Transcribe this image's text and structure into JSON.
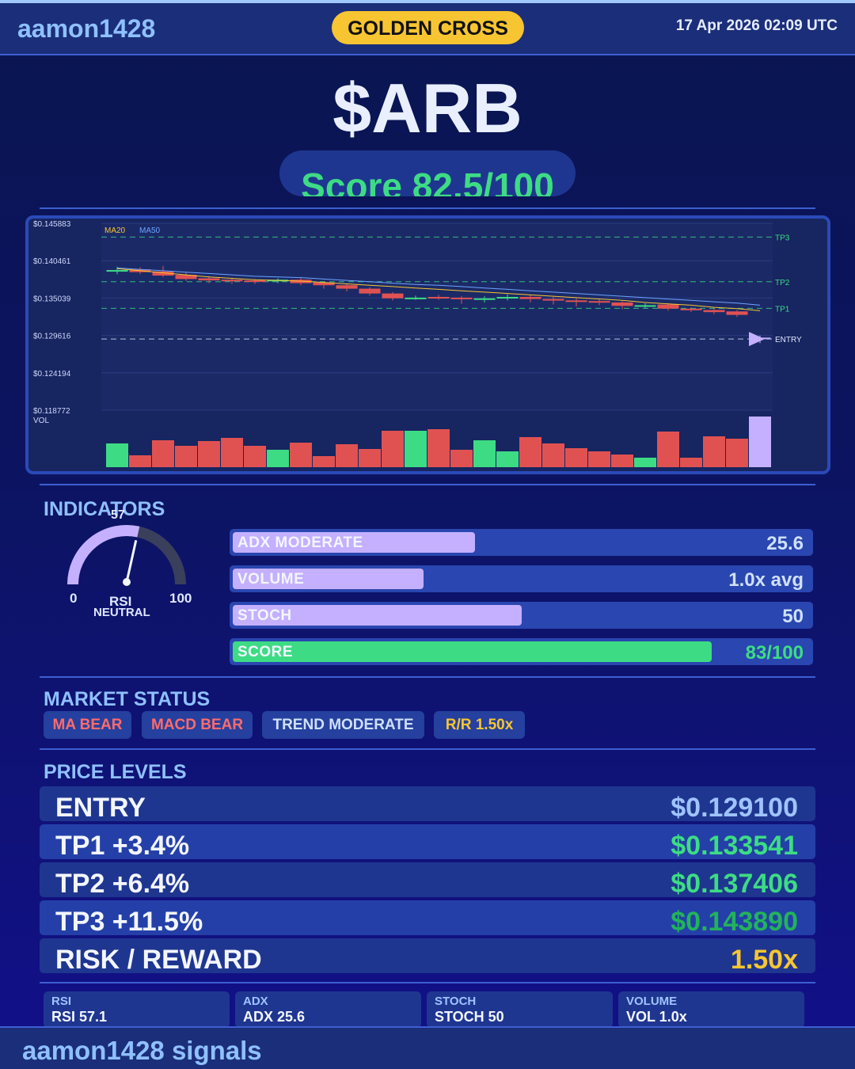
{
  "header": {
    "brand": "aamon1428",
    "badge": "GOLDEN CROSS",
    "datetime": "17 Apr 2026  02:09 UTC"
  },
  "ticker": "$ARB",
  "score_text": "Score 82.5/100",
  "chart_data": {
    "type": "candlestick",
    "y_ticks": [
      "$0.145883",
      "$0.140461",
      "$0.135039",
      "$0.129616",
      "$0.124194",
      "$0.118772"
    ],
    "ylim": [
      0.118772,
      0.145883
    ],
    "legend": [
      "MA20",
      "MA50"
    ],
    "vol_label": "VOL",
    "levels": [
      {
        "name": "TP3",
        "value": 0.14389
      },
      {
        "name": "TP2",
        "value": 0.137406
      },
      {
        "name": "TP1",
        "value": 0.133541
      },
      {
        "name": "ENTRY",
        "value": 0.1291
      }
    ],
    "candles": [
      {
        "o": 0.1391,
        "c": 0.1391,
        "h": 0.1396,
        "l": 0.1385,
        "v": 30
      },
      {
        "o": 0.1392,
        "c": 0.1388,
        "h": 0.1395,
        "l": 0.1385,
        "v": 15
      },
      {
        "o": 0.1389,
        "c": 0.1383,
        "h": 0.1397,
        "l": 0.1381,
        "v": 34
      },
      {
        "o": 0.1384,
        "c": 0.1378,
        "h": 0.1388,
        "l": 0.1375,
        "v": 27
      },
      {
        "o": 0.1379,
        "c": 0.1376,
        "h": 0.1382,
        "l": 0.1372,
        "v": 33
      },
      {
        "o": 0.1377,
        "c": 0.1375,
        "h": 0.1379,
        "l": 0.1371,
        "v": 37
      },
      {
        "o": 0.1376,
        "c": 0.1375,
        "h": 0.1378,
        "l": 0.1371,
        "v": 27
      },
      {
        "o": 0.1375,
        "c": 0.1377,
        "h": 0.1379,
        "l": 0.1372,
        "v": 22
      },
      {
        "o": 0.1377,
        "c": 0.1372,
        "h": 0.138,
        "l": 0.1369,
        "v": 31
      },
      {
        "o": 0.1373,
        "c": 0.1369,
        "h": 0.1375,
        "l": 0.1364,
        "v": 14
      },
      {
        "o": 0.1369,
        "c": 0.1364,
        "h": 0.1372,
        "l": 0.136,
        "v": 29
      },
      {
        "o": 0.1364,
        "c": 0.1357,
        "h": 0.1366,
        "l": 0.1354,
        "v": 23
      },
      {
        "o": 0.1357,
        "c": 0.135,
        "h": 0.1359,
        "l": 0.1347,
        "v": 46
      },
      {
        "o": 0.1351,
        "c": 0.1351,
        "h": 0.1354,
        "l": 0.1348,
        "v": 46
      },
      {
        "o": 0.1352,
        "c": 0.135,
        "h": 0.1355,
        "l": 0.1348,
        "v": 48
      },
      {
        "o": 0.1351,
        "c": 0.1349,
        "h": 0.1353,
        "l": 0.1342,
        "v": 22
      },
      {
        "o": 0.135,
        "c": 0.135,
        "h": 0.1353,
        "l": 0.1344,
        "v": 34
      },
      {
        "o": 0.135,
        "c": 0.1352,
        "h": 0.1356,
        "l": 0.1347,
        "v": 20
      },
      {
        "o": 0.1352,
        "c": 0.1349,
        "h": 0.1355,
        "l": 0.1344,
        "v": 38
      },
      {
        "o": 0.1349,
        "c": 0.1347,
        "h": 0.1352,
        "l": 0.1341,
        "v": 30
      },
      {
        "o": 0.1347,
        "c": 0.1345,
        "h": 0.135,
        "l": 0.1338,
        "v": 24
      },
      {
        "o": 0.1346,
        "c": 0.1344,
        "h": 0.1349,
        "l": 0.134,
        "v": 20
      },
      {
        "o": 0.1344,
        "c": 0.1339,
        "h": 0.1346,
        "l": 0.1334,
        "v": 16
      },
      {
        "o": 0.134,
        "c": 0.134,
        "h": 0.1343,
        "l": 0.1336,
        "v": 12
      },
      {
        "o": 0.1341,
        "c": 0.1335,
        "h": 0.1343,
        "l": 0.1332,
        "v": 45
      },
      {
        "o": 0.1335,
        "c": 0.1333,
        "h": 0.1337,
        "l": 0.133,
        "v": 12
      },
      {
        "o": 0.1333,
        "c": 0.133,
        "h": 0.1335,
        "l": 0.1327,
        "v": 39
      },
      {
        "o": 0.1331,
        "c": 0.1326,
        "h": 0.1333,
        "l": 0.1323,
        "v": 36
      },
      {
        "o": 0.1293,
        "c": 0.1291,
        "h": 0.1296,
        "l": 0.1285,
        "v": 64
      }
    ],
    "ma20": [
      0.1393,
      0.139,
      0.1387,
      0.1384,
      0.1381,
      0.1379,
      0.1377,
      0.1376,
      0.1375,
      0.1373,
      0.1371,
      0.1369,
      0.1367,
      0.1365,
      0.1363,
      0.1361,
      0.1359,
      0.1357,
      0.1355,
      0.1353,
      0.1351,
      0.1349,
      0.1347,
      0.1344,
      0.1342,
      0.134,
      0.1337,
      0.1335,
      0.1332
    ],
    "ma50": [
      0.1394,
      0.1392,
      0.139,
      0.1388,
      0.1386,
      0.1384,
      0.1382,
      0.1381,
      0.138,
      0.1378,
      0.1376,
      0.1374,
      0.1372,
      0.137,
      0.1369,
      0.1367,
      0.1365,
      0.1363,
      0.1361,
      0.1359,
      0.1357,
      0.1355,
      0.1353,
      0.1351,
      0.1349,
      0.1347,
      0.1345,
      0.1343,
      0.134
    ],
    "colors": {
      "up": "#3ddc84",
      "down": "#e05252",
      "last": "#c4b0ff",
      "ma20": "#f7c531",
      "ma50": "#6fa3ff",
      "levels": "#3ddc84",
      "entry": "#dfe7ff"
    }
  },
  "indicators": {
    "title": "INDICATORS",
    "rsi": {
      "value": 57,
      "value_label": "57",
      "min_label": "0",
      "max_label": "100",
      "name": "RSI",
      "state": "NEUTRAL"
    },
    "bars": [
      {
        "label": "ADX  MODERATE",
        "value": "25.6",
        "fill": 0.42,
        "color": "#c4b0ff"
      },
      {
        "label": "VOLUME",
        "value": "1.0x avg",
        "fill": 0.33,
        "color": "#c4b0ff"
      },
      {
        "label": "STOCH",
        "value": "50",
        "fill": 0.5,
        "color": "#c4b0ff"
      },
      {
        "label": "SCORE",
        "value": "83/100",
        "fill": 0.83,
        "color": "#3ddc84"
      }
    ]
  },
  "market_status": {
    "title": "MARKET STATUS",
    "chips": [
      {
        "label": "MA BEAR",
        "color": "#ff6b6b"
      },
      {
        "label": "MACD BEAR",
        "color": "#ff6b6b"
      },
      {
        "label": "TREND MODERATE",
        "color": "#cfe0ff"
      },
      {
        "label": "R/R  1.50x",
        "color": "#f7c531"
      }
    ]
  },
  "price_levels": {
    "title": "PRICE LEVELS",
    "rows": [
      {
        "name": "ENTRY",
        "value": "$0.129100",
        "color": "#9fc3ff"
      },
      {
        "name": "TP1  +3.4%",
        "value": "$0.133541",
        "color": "#3ddc84"
      },
      {
        "name": "TP2  +6.4%",
        "value": "$0.137406",
        "color": "#3ddc84"
      },
      {
        "name": "TP3  +11.5%",
        "value": "$0.143890",
        "color": "#22b35a"
      },
      {
        "name": "RISK / REWARD",
        "value": "1.50x",
        "color": "#f7c531"
      }
    ]
  },
  "mini_stats": [
    {
      "key": "RSI",
      "value": "RSI 57.1"
    },
    {
      "key": "ADX",
      "value": "ADX 25.6"
    },
    {
      "key": "STOCH",
      "value": "STOCH 50"
    },
    {
      "key": "VOLUME",
      "value": "VOL 1.0x"
    }
  ],
  "footer": "aamon1428 signals"
}
